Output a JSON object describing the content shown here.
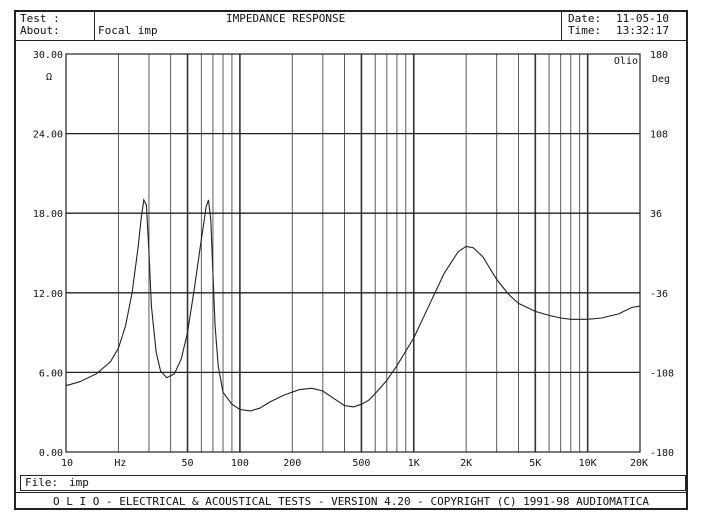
{
  "header": {
    "test_label": "Test :",
    "about_label": "About:",
    "about_value": "Focal imp",
    "title": "IMPEDANCE RESPONSE",
    "date_label": "Date:",
    "date_value": "11-05-10",
    "time_label": "Time:",
    "time_value": "13:32:17"
  },
  "file": {
    "label": "File:",
    "value": "imp"
  },
  "footer": {
    "text": "O L I O  -  ELECTRICAL & ACOUSTICAL TESTS  -  VERSION 4.20  -  COPYRIGHT (C) 1991-98 AUDIOMATICA"
  },
  "chart_data": {
    "type": "line",
    "title": "IMPEDANCE RESPONSE",
    "x_scale": "log",
    "xlim": [
      10,
      20000
    ],
    "x_unit_label": "Hz",
    "x_tick_labels": [
      {
        "value": 10,
        "label": "10"
      },
      {
        "value": 50,
        "label": "50"
      },
      {
        "value": 100,
        "label": "100"
      },
      {
        "value": 200,
        "label": "200"
      },
      {
        "value": 500,
        "label": "500"
      },
      {
        "value": 1000,
        "label": "1K"
      },
      {
        "value": 2000,
        "label": "2K"
      },
      {
        "value": 5000,
        "label": "5K"
      },
      {
        "value": 10000,
        "label": "10K"
      },
      {
        "value": 20000,
        "label": "20K"
      }
    ],
    "ylim": [
      0,
      30
    ],
    "y_unit_label": "Ω",
    "y_tick_labels": [
      "0.00",
      "6.00",
      "12.00",
      "18.00",
      "24.00",
      "30.00"
    ],
    "y2lim": [
      -180,
      180
    ],
    "y2_label": "Deg",
    "y2_tick_labels": [
      "-180",
      "-108",
      "-36",
      "36",
      "108",
      "180"
    ],
    "corner_label": "Olio",
    "grid": true,
    "series": [
      {
        "x": [
          10,
          12,
          15,
          18,
          20,
          22,
          24,
          26,
          27,
          28,
          29,
          30,
          31,
          33,
          35,
          38,
          42,
          46,
          50,
          55,
          60,
          64,
          66,
          68,
          70,
          72,
          75,
          80,
          90,
          100,
          115,
          130,
          150,
          180,
          220,
          260,
          300,
          350,
          400,
          450,
          500,
          550,
          600,
          700,
          800,
          1000,
          1200,
          1500,
          1800,
          2000,
          2200,
          2500,
          3000,
          3500,
          4000,
          5000,
          6000,
          7000,
          8000,
          10000,
          12000,
          15000,
          18000,
          20000
        ],
        "y": [
          5.0,
          5.3,
          5.9,
          6.8,
          7.8,
          9.5,
          12.0,
          15.5,
          17.5,
          19.0,
          18.6,
          15.0,
          11.0,
          7.5,
          6.1,
          5.6,
          5.9,
          7.0,
          9.0,
          12.5,
          16.0,
          18.5,
          19.0,
          17.5,
          13.5,
          9.5,
          6.5,
          4.5,
          3.6,
          3.2,
          3.1,
          3.3,
          3.8,
          4.3,
          4.7,
          4.8,
          4.6,
          4.0,
          3.5,
          3.4,
          3.6,
          3.9,
          4.4,
          5.4,
          6.5,
          8.6,
          10.8,
          13.5,
          15.1,
          15.5,
          15.4,
          14.7,
          13.0,
          11.9,
          11.2,
          10.6,
          10.3,
          10.1,
          10.0,
          10.0,
          10.1,
          10.4,
          10.9,
          11.0
        ]
      }
    ]
  }
}
